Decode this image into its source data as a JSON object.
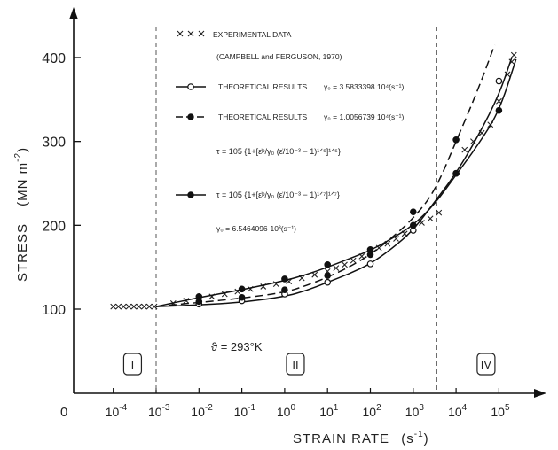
{
  "chart_data": {
    "type": "line",
    "xlabel": "STRAIN RATE",
    "xlabel_unit": "(s",
    "xlabel_unit_exp": "-1",
    "xlabel_unit_close": ")",
    "ylabel": "STRESS",
    "ylabel_unit": "(MN m",
    "ylabel_unit_exp": "-2",
    "ylabel_unit_close": ")",
    "x_scale": "log",
    "x_origin_label": "0",
    "x_ticks": [
      {
        "exp": -4,
        "base": "10",
        "sup": "-4"
      },
      {
        "exp": -3,
        "base": "10",
        "sup": "-3"
      },
      {
        "exp": -2,
        "base": "10",
        "sup": "-2"
      },
      {
        "exp": -1,
        "base": "10",
        "sup": "-1"
      },
      {
        "exp": 0,
        "base": "10",
        "sup": "0"
      },
      {
        "exp": 1,
        "base": "10",
        "sup": "1"
      },
      {
        "exp": 2,
        "base": "10",
        "sup": "2"
      },
      {
        "exp": 3,
        "base": "10",
        "sup": "3"
      },
      {
        "exp": 4,
        "base": "10",
        "sup": "4"
      },
      {
        "exp": 5,
        "base": "10",
        "sup": "5"
      }
    ],
    "y_ticks": [
      100,
      200,
      300,
      400
    ],
    "ylim": [
      80,
      440
    ],
    "grid": false,
    "legend_position": "top-center",
    "regions": [
      {
        "label": "I",
        "x_exp": -3.55
      },
      {
        "label": "II",
        "x_exp": 0.25
      },
      {
        "label": "IV",
        "x_exp": 4.7
      }
    ],
    "region_boundaries_exp": [
      -3,
      3.55
    ],
    "temperature_annotation": "ϑ = 293°K",
    "legend": {
      "experimental_label": "EXPERIMENTAL DATA",
      "experimental_source": "(CAMPBELL and FERGUSON, 1970)",
      "theory1_label": "THEORETICAL RESULTS",
      "theory1_param": "γ₀ = 3.5833398 10⁴(s⁻¹)",
      "theory2_label": "THEORETICAL RESULTS",
      "theory2_param": "γ₀ = 1.0056739 10⁴(s⁻¹)",
      "formula1": "τ = 105 {1+[ε̇ᵖ/γ₀ (ε̇/10⁻³ − 1)¹ᐟ⁵]¹ᐟ⁵}",
      "formula2": "τ = 105 {1+[ε̇ᵖ/γ₀ (ε̇/10⁻³ − 1)¹ᐟ⁷]¹ᐟ⁷}",
      "formula2_param": "γ₀ = 6.5464096·10³(s⁻¹)"
    },
    "series": [
      {
        "name": "EXPERIMENTAL DATA",
        "style": "cross-markers",
        "points": [
          [
            -4.0,
            103
          ],
          [
            -3.88,
            103
          ],
          [
            -3.76,
            103
          ],
          [
            -3.64,
            103
          ],
          [
            -3.52,
            103
          ],
          [
            -3.4,
            103
          ],
          [
            -3.28,
            103
          ],
          [
            -3.16,
            103
          ],
          [
            -3.04,
            103
          ],
          [
            -2.6,
            107
          ],
          [
            -2.3,
            110
          ],
          [
            -2.0,
            112
          ],
          [
            -1.7,
            115
          ],
          [
            -1.4,
            118
          ],
          [
            -1.1,
            121
          ],
          [
            -0.8,
            124
          ],
          [
            -0.5,
            127
          ],
          [
            -0.2,
            130
          ],
          [
            0.1,
            133
          ],
          [
            0.4,
            137
          ],
          [
            0.7,
            141
          ],
          [
            1.0,
            145
          ],
          [
            1.2,
            149
          ],
          [
            1.4,
            153
          ],
          [
            1.6,
            158
          ],
          [
            1.8,
            163
          ],
          [
            2.0,
            168
          ],
          [
            2.2,
            173
          ],
          [
            2.4,
            178
          ],
          [
            2.6,
            184
          ],
          [
            2.8,
            190
          ],
          [
            3.0,
            197
          ],
          [
            3.2,
            203
          ],
          [
            3.4,
            208
          ],
          [
            3.6,
            215
          ],
          [
            4.2,
            290
          ],
          [
            4.4,
            300
          ],
          [
            4.6,
            310
          ],
          [
            4.8,
            320
          ],
          [
            5.0,
            348
          ],
          [
            5.2,
            380
          ],
          [
            5.3,
            395
          ],
          [
            5.35,
            403
          ]
        ]
      },
      {
        "name": "THEORETICAL RESULTS",
        "style": "solid-open-circle",
        "curve": [
          [
            -3,
            103
          ],
          [
            -2,
            105
          ],
          [
            -1,
            108
          ],
          [
            0,
            115
          ],
          [
            0.5,
            122
          ],
          [
            1,
            132
          ],
          [
            1.5,
            142
          ],
          [
            2,
            154
          ],
          [
            2.5,
            172
          ],
          [
            3,
            194
          ],
          [
            3.5,
            228
          ],
          [
            4,
            262
          ],
          [
            4.5,
            305
          ],
          [
            5,
            355
          ],
          [
            5.3,
            400
          ]
        ],
        "markers": [
          [
            -2,
            106
          ],
          [
            -1,
            110
          ],
          [
            0,
            118
          ],
          [
            1,
            132
          ],
          [
            2,
            154
          ],
          [
            3,
            194
          ],
          [
            4,
            262
          ],
          [
            5,
            372
          ]
        ]
      },
      {
        "name": "THEORETICAL RESULTS",
        "style": "dashed-filled-circle",
        "curve": [
          [
            -3,
            103
          ],
          [
            -2,
            108
          ],
          [
            -1,
            113
          ],
          [
            0,
            120
          ],
          [
            0.5,
            128
          ],
          [
            1,
            138
          ],
          [
            1.5,
            150
          ],
          [
            2,
            165
          ],
          [
            2.5,
            185
          ],
          [
            3,
            208
          ],
          [
            3.5,
            240
          ],
          [
            4,
            300
          ],
          [
            4.5,
            360
          ],
          [
            4.9,
            415
          ]
        ],
        "markers": [
          [
            -2,
            109
          ],
          [
            -1,
            114
          ],
          [
            0,
            123
          ],
          [
            1,
            140
          ],
          [
            2,
            165
          ],
          [
            3,
            216
          ],
          [
            4,
            302
          ]
        ]
      },
      {
        "name": "τ = 105",
        "style": "solid-filled-circle",
        "curve": [
          [
            -3,
            103
          ],
          [
            -2,
            114
          ],
          [
            -1,
            123
          ],
          [
            0,
            134
          ],
          [
            0.5,
            141
          ],
          [
            1,
            150
          ],
          [
            1.5,
            160
          ],
          [
            2,
            170
          ],
          [
            2.5,
            184
          ],
          [
            3,
            200
          ],
          [
            3.5,
            225
          ],
          [
            4,
            260
          ],
          [
            4.5,
            295
          ],
          [
            5,
            335
          ],
          [
            5.4,
            398
          ]
        ],
        "markers": [
          [
            -2,
            115
          ],
          [
            -1,
            124
          ],
          [
            0,
            136
          ],
          [
            1,
            153
          ],
          [
            2,
            171
          ],
          [
            3,
            200
          ],
          [
            4,
            262
          ],
          [
            5,
            337
          ]
        ]
      }
    ]
  }
}
